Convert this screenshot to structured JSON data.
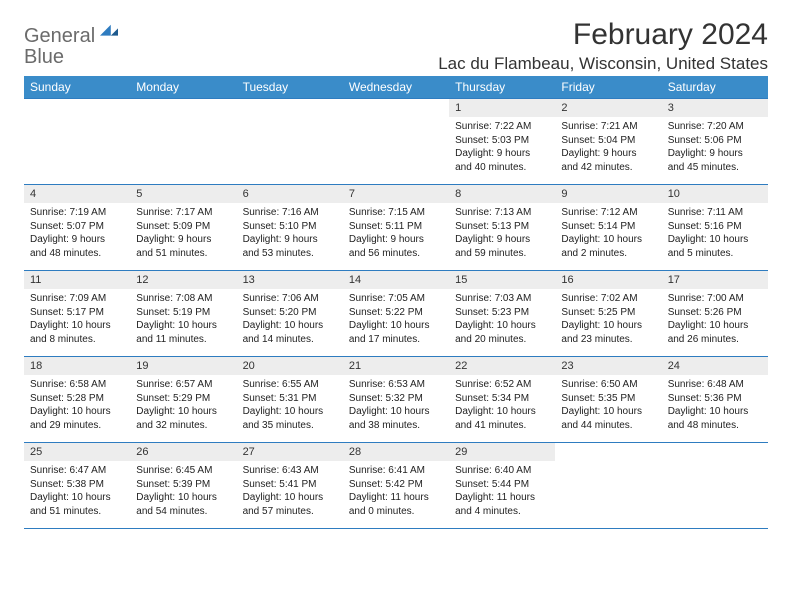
{
  "brand": {
    "word1": "General",
    "word2": "Blue"
  },
  "header": {
    "month_title": "February 2024",
    "location": "Lac du Flambeau, Wisconsin, United States"
  },
  "colors": {
    "header_bg": "#3a8cc9",
    "rule": "#2e7cc0",
    "daynum_bg": "#ededed"
  },
  "weekdays": [
    "Sunday",
    "Monday",
    "Tuesday",
    "Wednesday",
    "Thursday",
    "Friday",
    "Saturday"
  ],
  "weeks": [
    [
      {
        "empty": true
      },
      {
        "empty": true
      },
      {
        "empty": true
      },
      {
        "empty": true
      },
      {
        "num": "1",
        "sunrise": "Sunrise: 7:22 AM",
        "sunset": "Sunset: 5:03 PM",
        "day1": "Daylight: 9 hours",
        "day2": "and 40 minutes."
      },
      {
        "num": "2",
        "sunrise": "Sunrise: 7:21 AM",
        "sunset": "Sunset: 5:04 PM",
        "day1": "Daylight: 9 hours",
        "day2": "and 42 minutes."
      },
      {
        "num": "3",
        "sunrise": "Sunrise: 7:20 AM",
        "sunset": "Sunset: 5:06 PM",
        "day1": "Daylight: 9 hours",
        "day2": "and 45 minutes."
      }
    ],
    [
      {
        "num": "4",
        "sunrise": "Sunrise: 7:19 AM",
        "sunset": "Sunset: 5:07 PM",
        "day1": "Daylight: 9 hours",
        "day2": "and 48 minutes."
      },
      {
        "num": "5",
        "sunrise": "Sunrise: 7:17 AM",
        "sunset": "Sunset: 5:09 PM",
        "day1": "Daylight: 9 hours",
        "day2": "and 51 minutes."
      },
      {
        "num": "6",
        "sunrise": "Sunrise: 7:16 AM",
        "sunset": "Sunset: 5:10 PM",
        "day1": "Daylight: 9 hours",
        "day2": "and 53 minutes."
      },
      {
        "num": "7",
        "sunrise": "Sunrise: 7:15 AM",
        "sunset": "Sunset: 5:11 PM",
        "day1": "Daylight: 9 hours",
        "day2": "and 56 minutes."
      },
      {
        "num": "8",
        "sunrise": "Sunrise: 7:13 AM",
        "sunset": "Sunset: 5:13 PM",
        "day1": "Daylight: 9 hours",
        "day2": "and 59 minutes."
      },
      {
        "num": "9",
        "sunrise": "Sunrise: 7:12 AM",
        "sunset": "Sunset: 5:14 PM",
        "day1": "Daylight: 10 hours",
        "day2": "and 2 minutes."
      },
      {
        "num": "10",
        "sunrise": "Sunrise: 7:11 AM",
        "sunset": "Sunset: 5:16 PM",
        "day1": "Daylight: 10 hours",
        "day2": "and 5 minutes."
      }
    ],
    [
      {
        "num": "11",
        "sunrise": "Sunrise: 7:09 AM",
        "sunset": "Sunset: 5:17 PM",
        "day1": "Daylight: 10 hours",
        "day2": "and 8 minutes."
      },
      {
        "num": "12",
        "sunrise": "Sunrise: 7:08 AM",
        "sunset": "Sunset: 5:19 PM",
        "day1": "Daylight: 10 hours",
        "day2": "and 11 minutes."
      },
      {
        "num": "13",
        "sunrise": "Sunrise: 7:06 AM",
        "sunset": "Sunset: 5:20 PM",
        "day1": "Daylight: 10 hours",
        "day2": "and 14 minutes."
      },
      {
        "num": "14",
        "sunrise": "Sunrise: 7:05 AM",
        "sunset": "Sunset: 5:22 PM",
        "day1": "Daylight: 10 hours",
        "day2": "and 17 minutes."
      },
      {
        "num": "15",
        "sunrise": "Sunrise: 7:03 AM",
        "sunset": "Sunset: 5:23 PM",
        "day1": "Daylight: 10 hours",
        "day2": "and 20 minutes."
      },
      {
        "num": "16",
        "sunrise": "Sunrise: 7:02 AM",
        "sunset": "Sunset: 5:25 PM",
        "day1": "Daylight: 10 hours",
        "day2": "and 23 minutes."
      },
      {
        "num": "17",
        "sunrise": "Sunrise: 7:00 AM",
        "sunset": "Sunset: 5:26 PM",
        "day1": "Daylight: 10 hours",
        "day2": "and 26 minutes."
      }
    ],
    [
      {
        "num": "18",
        "sunrise": "Sunrise: 6:58 AM",
        "sunset": "Sunset: 5:28 PM",
        "day1": "Daylight: 10 hours",
        "day2": "and 29 minutes."
      },
      {
        "num": "19",
        "sunrise": "Sunrise: 6:57 AM",
        "sunset": "Sunset: 5:29 PM",
        "day1": "Daylight: 10 hours",
        "day2": "and 32 minutes."
      },
      {
        "num": "20",
        "sunrise": "Sunrise: 6:55 AM",
        "sunset": "Sunset: 5:31 PM",
        "day1": "Daylight: 10 hours",
        "day2": "and 35 minutes."
      },
      {
        "num": "21",
        "sunrise": "Sunrise: 6:53 AM",
        "sunset": "Sunset: 5:32 PM",
        "day1": "Daylight: 10 hours",
        "day2": "and 38 minutes."
      },
      {
        "num": "22",
        "sunrise": "Sunrise: 6:52 AM",
        "sunset": "Sunset: 5:34 PM",
        "day1": "Daylight: 10 hours",
        "day2": "and 41 minutes."
      },
      {
        "num": "23",
        "sunrise": "Sunrise: 6:50 AM",
        "sunset": "Sunset: 5:35 PM",
        "day1": "Daylight: 10 hours",
        "day2": "and 44 minutes."
      },
      {
        "num": "24",
        "sunrise": "Sunrise: 6:48 AM",
        "sunset": "Sunset: 5:36 PM",
        "day1": "Daylight: 10 hours",
        "day2": "and 48 minutes."
      }
    ],
    [
      {
        "num": "25",
        "sunrise": "Sunrise: 6:47 AM",
        "sunset": "Sunset: 5:38 PM",
        "day1": "Daylight: 10 hours",
        "day2": "and 51 minutes."
      },
      {
        "num": "26",
        "sunrise": "Sunrise: 6:45 AM",
        "sunset": "Sunset: 5:39 PM",
        "day1": "Daylight: 10 hours",
        "day2": "and 54 minutes."
      },
      {
        "num": "27",
        "sunrise": "Sunrise: 6:43 AM",
        "sunset": "Sunset: 5:41 PM",
        "day1": "Daylight: 10 hours",
        "day2": "and 57 minutes."
      },
      {
        "num": "28",
        "sunrise": "Sunrise: 6:41 AM",
        "sunset": "Sunset: 5:42 PM",
        "day1": "Daylight: 11 hours",
        "day2": "and 0 minutes."
      },
      {
        "num": "29",
        "sunrise": "Sunrise: 6:40 AM",
        "sunset": "Sunset: 5:44 PM",
        "day1": "Daylight: 11 hours",
        "day2": "and 4 minutes."
      },
      {
        "empty": true
      },
      {
        "empty": true
      }
    ]
  ]
}
